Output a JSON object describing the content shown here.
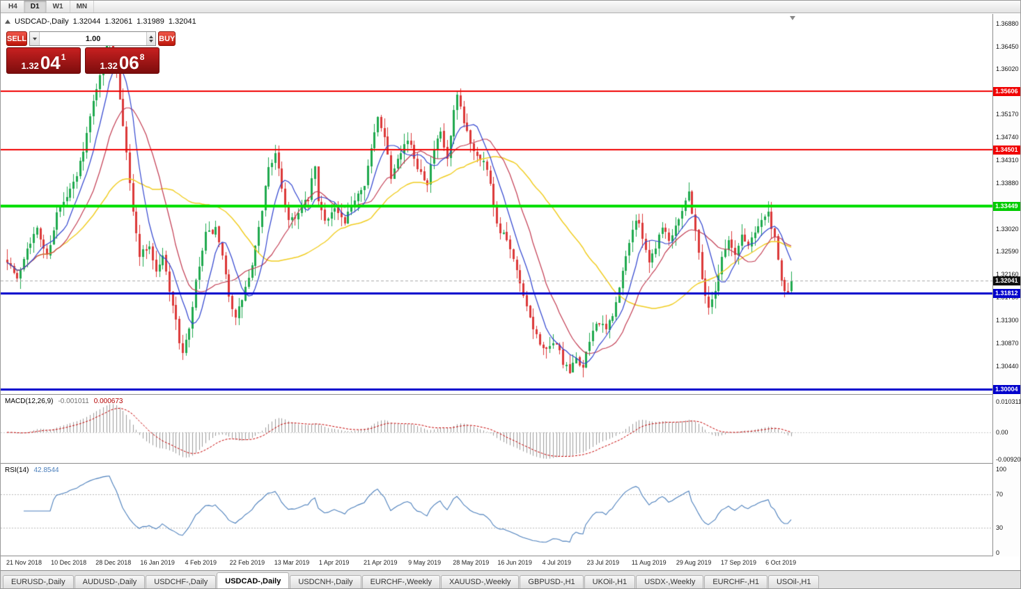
{
  "toolbar": {
    "timeframes": [
      "H4",
      "D1",
      "W1",
      "MN"
    ],
    "active": "D1"
  },
  "chart": {
    "symbol": "USDCAD-,Daily",
    "open": "1.32044",
    "high": "1.32061",
    "low": "1.31989",
    "close": "1.32041"
  },
  "trade": {
    "sell_label": "SELL",
    "buy_label": "BUY",
    "volume": "1.00",
    "sell_price": {
      "prefix": "1.32",
      "main": "04",
      "sup": "1"
    },
    "buy_price": {
      "prefix": "1.32",
      "main": "06",
      "sup": "8"
    }
  },
  "price_axis": {
    "ticks": [
      "1.36880",
      "1.36450",
      "1.36020",
      "1.35170",
      "1.34740",
      "1.34310",
      "1.33880",
      "1.33020",
      "1.32590",
      "1.32160",
      "1.31730",
      "1.31300",
      "1.30870",
      "1.30440"
    ],
    "tags": [
      {
        "text": "1.35606",
        "value": 1.35606,
        "color": "#f00000"
      },
      {
        "text": "1.34501",
        "value": 1.34501,
        "color": "#f00000"
      },
      {
        "text": "1.33449",
        "value": 1.33449,
        "color": "#00cc00"
      },
      {
        "text": "1.32041",
        "value": 1.32041,
        "color": "#101010"
      },
      {
        "text": "1.31812",
        "value": 1.31812,
        "color": "#0000cc"
      },
      {
        "text": "1.30004",
        "value": 1.30004,
        "color": "#0000cc"
      }
    ]
  },
  "hlines": [
    {
      "value": 1.35606,
      "color": "#f00000",
      "width": 2
    },
    {
      "value": 1.34501,
      "color": "#f00000",
      "width": 2
    },
    {
      "value": 1.33449,
      "color": "#00dd00",
      "width": 4
    },
    {
      "value": 1.31812,
      "color": "#0000cc",
      "width": 3
    },
    {
      "value": 1.30004,
      "color": "#0000cc",
      "width": 3
    },
    {
      "value": 1.32041,
      "color": "#a8a8a8",
      "width": 1,
      "dash": true
    }
  ],
  "date_axis": [
    "21 Nov 2018",
    "10 Dec 2018",
    "28 Dec 2018",
    "16 Jan 2019",
    "4 Feb 2019",
    "22 Feb 2019",
    "13 Mar 2019",
    "1 Apr 2019",
    "21 Apr 2019",
    "9 May 2019",
    "28 May 2019",
    "16 Jun 2019",
    "4 Jul 2019",
    "23 Jul 2019",
    "11 Aug 2019",
    "29 Aug 2019",
    "17 Sep 2019",
    "6 Oct 2019"
  ],
  "macd": {
    "name": "MACD(12,26,9)",
    "value_main": "-0.001011",
    "value_signal": "0.000673",
    "axis": [
      "0.010311",
      "0.00",
      "-0.009203"
    ]
  },
  "rsi": {
    "name": "RSI(14)",
    "value": "42.8544",
    "axis": [
      "100",
      "70",
      "30",
      "0"
    ],
    "levels": [
      70,
      30
    ]
  },
  "tabs": [
    {
      "label": "EURUSD-,Daily",
      "active": false
    },
    {
      "label": "AUDUSD-,Daily",
      "active": false
    },
    {
      "label": "USDCHF-,Daily",
      "active": false
    },
    {
      "label": "USDCAD-,Daily",
      "active": true
    },
    {
      "label": "USDCNH-,Daily",
      "active": false
    },
    {
      "label": "EURCHF-,Weekly",
      "active": false
    },
    {
      "label": "XAUUSD-,Weekly",
      "active": false
    },
    {
      "label": "GBPUSD-,H1",
      "active": false
    },
    {
      "label": "UKOil-,H1",
      "active": false
    },
    {
      "label": "USDX-,Weekly",
      "active": false
    },
    {
      "label": "EURCHF-,H1",
      "active": false
    },
    {
      "label": "USOil-,H1",
      "active": false
    }
  ],
  "colors": {
    "up": "#1fa94e",
    "down": "#dc3838",
    "ma_fast": "#2f43cf",
    "ma_mid": "#c23a50",
    "ma_slow": "#f0cc1e",
    "macd_hist": "#9a9a9a",
    "macd_signal": "#c40000",
    "rsi_line": "#4a7ebb"
  },
  "chart_data": {
    "type": "candlestick",
    "symbol": "USDCAD",
    "timeframe": "Daily",
    "title": "USDCAD-,Daily",
    "x_range": [
      "21 Nov 2018",
      "15 Oct 2019"
    ],
    "y_range": [
      1.2991,
      1.3706
    ],
    "candle_count": 238,
    "last_close": 1.32041,
    "last_ohlc": [
      1.32044,
      1.32061,
      1.31989,
      1.32041
    ],
    "seed": 7,
    "horizontal_levels": [
      1.35606,
      1.34501,
      1.33449,
      1.32041,
      1.31812,
      1.30004
    ],
    "moving_averages": [
      {
        "period": 8,
        "color": "#2f43cf"
      },
      {
        "period": 17,
        "color": "#c23a50"
      },
      {
        "period": 45,
        "color": "#f0cc1e"
      }
    ],
    "close_path_anchors": [
      [
        0,
        1.3245
      ],
      [
        3,
        1.3205
      ],
      [
        6,
        1.327
      ],
      [
        9,
        1.33
      ],
      [
        12,
        1.325
      ],
      [
        15,
        1.333
      ],
      [
        18,
        1.336
      ],
      [
        21,
        1.34
      ],
      [
        24,
        1.348
      ],
      [
        27,
        1.357
      ],
      [
        30,
        1.3645
      ],
      [
        31,
        1.366
      ],
      [
        33,
        1.36
      ],
      [
        36,
        1.345
      ],
      [
        38,
        1.333
      ],
      [
        40,
        1.3255
      ],
      [
        43,
        1.327
      ],
      [
        45,
        1.322
      ],
      [
        47,
        1.325
      ],
      [
        50,
        1.316
      ],
      [
        52,
        1.309
      ],
      [
        53,
        1.307
      ],
      [
        55,
        1.311
      ],
      [
        57,
        1.32
      ],
      [
        60,
        1.329
      ],
      [
        63,
        1.33
      ],
      [
        65,
        1.3245
      ],
      [
        67,
        1.318
      ],
      [
        69,
        1.313
      ],
      [
        71,
        1.317
      ],
      [
        74,
        1.323
      ],
      [
        76,
        1.33
      ],
      [
        79,
        1.342
      ],
      [
        81,
        1.344
      ],
      [
        83,
        1.338
      ],
      [
        85,
        1.332
      ],
      [
        88,
        1.333
      ],
      [
        91,
        1.336
      ],
      [
        93,
        1.342
      ],
      [
        94,
        1.335
      ],
      [
        96,
        1.332
      ],
      [
        99,
        1.334
      ],
      [
        102,
        1.331
      ],
      [
        105,
        1.336
      ],
      [
        108,
        1.339
      ],
      [
        110,
        1.345
      ],
      [
        112,
        1.351
      ],
      [
        114,
        1.348
      ],
      [
        116,
        1.34
      ],
      [
        118,
        1.344
      ],
      [
        121,
        1.347
      ],
      [
        124,
        1.342
      ],
      [
        127,
        1.339
      ],
      [
        129,
        1.345
      ],
      [
        131,
        1.348
      ],
      [
        133,
        1.343
      ],
      [
        135,
        1.352
      ],
      [
        136,
        1.355
      ],
      [
        138,
        1.35
      ],
      [
        141,
        1.345
      ],
      [
        144,
        1.343
      ],
      [
        146,
        1.339
      ],
      [
        148,
        1.331
      ],
      [
        151,
        1.328
      ],
      [
        154,
        1.322
      ],
      [
        157,
        1.315
      ],
      [
        160,
        1.31
      ],
      [
        163,
        1.307
      ],
      [
        166,
        1.309
      ],
      [
        168,
        1.305
      ],
      [
        170,
        1.303
      ],
      [
        172,
        1.306
      ],
      [
        174,
        1.304
      ],
      [
        176,
        1.309
      ],
      [
        178,
        1.313
      ],
      [
        181,
        1.311
      ],
      [
        184,
        1.316
      ],
      [
        186,
        1.322
      ],
      [
        188,
        1.328
      ],
      [
        190,
        1.332
      ],
      [
        192,
        1.329
      ],
      [
        194,
        1.324
      ],
      [
        196,
        1.327
      ],
      [
        198,
        1.331
      ],
      [
        200,
        1.328
      ],
      [
        202,
        1.331
      ],
      [
        204,
        1.334
      ],
      [
        206,
        1.337
      ],
      [
        208,
        1.33
      ],
      [
        210,
        1.321
      ],
      [
        212,
        1.315
      ],
      [
        214,
        1.319
      ],
      [
        216,
        1.325
      ],
      [
        218,
        1.328
      ],
      [
        220,
        1.325
      ],
      [
        222,
        1.329
      ],
      [
        224,
        1.327
      ],
      [
        226,
        1.33
      ],
      [
        228,
        1.332
      ],
      [
        230,
        1.333
      ],
      [
        232,
        1.328
      ],
      [
        234,
        1.32
      ],
      [
        236,
        1.318
      ],
      [
        237,
        1.32041
      ]
    ],
    "macd_panel": {
      "axis_max": 0.010311,
      "axis_min": -0.009203,
      "current": [
        -0.001011,
        0.000673
      ]
    },
    "rsi_panel": {
      "levels": [
        70,
        30
      ],
      "current": 42.8544
    }
  }
}
